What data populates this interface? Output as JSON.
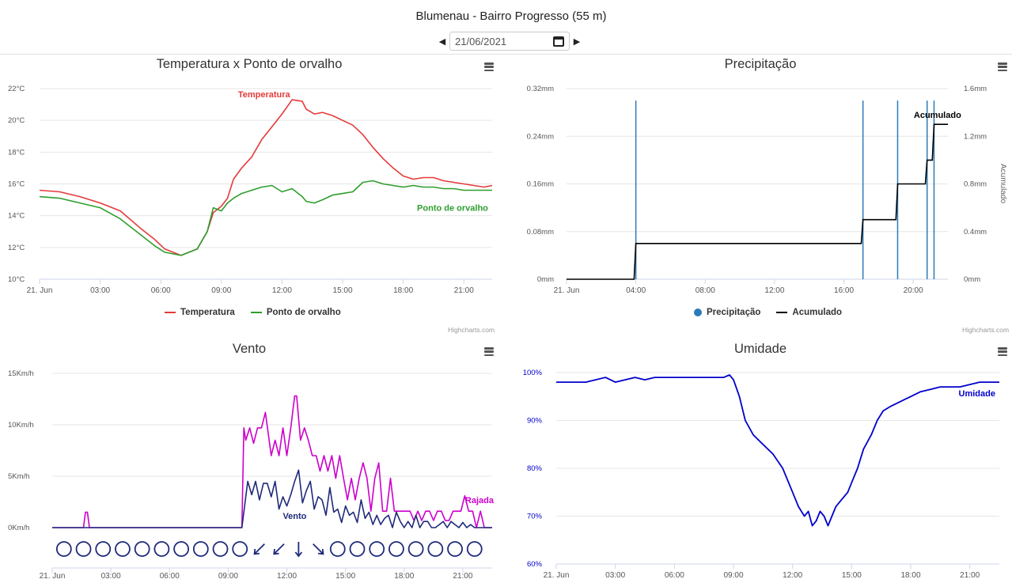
{
  "station": {
    "title": "Blumenau - Bairro Progresso (55 m)",
    "date": "21/06/2021"
  },
  "icons": {
    "prev": "caret-left-icon",
    "next": "caret-right-icon",
    "calendar": "calendar-icon",
    "menu": "hamburger-menu-icon"
  },
  "credits": "Highcharts.com",
  "x_ticks": [
    "21. Jun",
    "03:00",
    "06:00",
    "09:00",
    "12:00",
    "15:00",
    "18:00",
    "21:00"
  ],
  "precip_x_ticks": [
    "21. Jun",
    "04:00",
    "08:00",
    "12:00",
    "16:00",
    "20:00"
  ],
  "colors": {
    "temperature": "#e53a3a",
    "dewpoint": "#2e9e2e",
    "precip": "#2b7bba",
    "accum": "#000000",
    "gust": "#cc00cc",
    "wind": "#1f2a7a",
    "humidity": "#0000cc"
  },
  "chart_data": [
    {
      "id": "temp",
      "type": "line",
      "title": "Temperatura x Ponto de orvalho",
      "x_range_hours": [
        0,
        22.4
      ],
      "ylim": [
        10,
        22
      ],
      "y_ticks": [
        "10°C",
        "12°C",
        "14°C",
        "16°C",
        "18°C",
        "20°C",
        "22°C"
      ],
      "series": [
        {
          "name": "Temperatura",
          "x": [
            0,
            1,
            2,
            3,
            4,
            5,
            5.7,
            6.2,
            7,
            7.8,
            8.3,
            8.6,
            9,
            9.3,
            9.6,
            10,
            10.5,
            11,
            11.5,
            12,
            12.5,
            13,
            13.2,
            13.6,
            14,
            14.5,
            15,
            15.5,
            16,
            16.5,
            17,
            17.5,
            18,
            18.5,
            19,
            19.5,
            20,
            20.5,
            21,
            21.5,
            22,
            22.4
          ],
          "y": [
            15.6,
            15.5,
            15.2,
            14.8,
            14.3,
            13.2,
            12.5,
            11.9,
            11.5,
            11.9,
            13.0,
            14.2,
            14.6,
            15.1,
            16.3,
            17.0,
            17.7,
            18.8,
            19.6,
            20.4,
            21.3,
            21.2,
            20.7,
            20.4,
            20.5,
            20.3,
            20.0,
            19.7,
            19.1,
            18.3,
            17.6,
            17.0,
            16.5,
            16.3,
            16.4,
            16.4,
            16.2,
            16.1,
            16.0,
            15.9,
            15.8,
            15.9
          ]
        },
        {
          "name": "Ponto de orvalho",
          "x": [
            0,
            1,
            2,
            3,
            4,
            5,
            5.7,
            6.2,
            7,
            7.8,
            8.3,
            8.6,
            9,
            9.3,
            9.6,
            10,
            10.5,
            11,
            11.5,
            12,
            12.5,
            13,
            13.2,
            13.6,
            14,
            14.5,
            15,
            15.5,
            16,
            16.5,
            17,
            17.5,
            18,
            18.5,
            19,
            19.5,
            20,
            20.5,
            21,
            21.5,
            22,
            22.4
          ],
          "y": [
            15.2,
            15.1,
            14.8,
            14.5,
            13.8,
            12.8,
            12.1,
            11.7,
            11.5,
            11.9,
            13.0,
            14.5,
            14.3,
            14.8,
            15.1,
            15.4,
            15.6,
            15.8,
            15.9,
            15.5,
            15.7,
            15.2,
            14.9,
            14.8,
            15.0,
            15.3,
            15.4,
            15.5,
            16.1,
            16.2,
            16.0,
            15.9,
            15.8,
            15.9,
            15.8,
            15.8,
            15.7,
            15.7,
            15.6,
            15.6,
            15.6,
            15.6
          ]
        }
      ]
    },
    {
      "id": "precip",
      "type": "bar+line",
      "title": "Precipitação",
      "x_range_hours": [
        0,
        22
      ],
      "ylim": [
        0,
        0.32
      ],
      "y2lim": [
        0,
        1.6
      ],
      "y_ticks": [
        "0mm",
        "0.08mm",
        "0.16mm",
        "0.24mm",
        "0.32mm"
      ],
      "y2_ticks": [
        "0mm",
        "0.4mm",
        "0.8mm",
        "1.2mm",
        "1.6mm"
      ],
      "y2label": "Acumulado",
      "series": [
        {
          "name": "Precipitação",
          "x": [
            4.0,
            17.1,
            19.1,
            20.8,
            21.2
          ],
          "y": [
            0.3,
            0.3,
            0.3,
            0.3,
            0.3
          ]
        },
        {
          "name": "Acumulado",
          "x": [
            0,
            3.9,
            4.0,
            17.0,
            17.1,
            19.0,
            19.1,
            20.7,
            20.8,
            21.1,
            21.2,
            21.5,
            22
          ],
          "y": [
            0,
            0,
            0.3,
            0.3,
            0.5,
            0.5,
            0.8,
            0.8,
            1.0,
            1.0,
            1.3,
            1.3,
            1.3
          ]
        }
      ]
    },
    {
      "id": "wind",
      "type": "line",
      "title": "Vento",
      "x_range_hours": [
        0,
        22.5
      ],
      "ylim": [
        0,
        15
      ],
      "y_ticks": [
        "0Km/h",
        "5Km/h",
        "10Km/h",
        "15Km/h"
      ],
      "series": [
        {
          "name": "Rajada",
          "x": [
            0,
            1.6,
            1.7,
            1.8,
            1.9,
            9.7,
            9.8,
            9.9,
            10.1,
            10.3,
            10.5,
            10.7,
            10.9,
            11.2,
            11.4,
            11.6,
            11.8,
            12.0,
            12.2,
            12.4,
            12.5,
            12.7,
            12.9,
            13.1,
            13.3,
            13.5,
            13.7,
            13.9,
            14.1,
            14.3,
            14.5,
            14.7,
            14.9,
            15.1,
            15.3,
            15.5,
            15.7,
            15.9,
            16.1,
            16.3,
            16.5,
            16.7,
            16.9,
            17.1,
            17.3,
            17.5,
            17.7,
            17.9,
            18.1,
            18.3,
            18.5,
            18.7,
            18.9,
            19.1,
            19.3,
            19.5,
            19.7,
            19.9,
            20.1,
            20.3,
            20.5,
            20.7,
            20.9,
            21.1,
            21.3,
            21.5,
            21.7,
            21.9,
            22.1,
            22.5
          ],
          "y": [
            0,
            0,
            1.5,
            1.5,
            0,
            0,
            9.7,
            8.5,
            9.7,
            8.2,
            9.7,
            9.7,
            11.2,
            7.0,
            8.5,
            7.0,
            9.7,
            7.0,
            9.7,
            12.8,
            12.8,
            8.5,
            9.7,
            8.5,
            7.0,
            7.0,
            5.5,
            7.0,
            5.5,
            7.0,
            4.8,
            7.0,
            4.8,
            2.7,
            4.8,
            2.7,
            4.8,
            6.3,
            4.8,
            1.6,
            4.8,
            6.3,
            1.6,
            1.6,
            4.8,
            1.6,
            1.6,
            1.6,
            1.6,
            1.6,
            0.7,
            1.6,
            0.7,
            1.6,
            1.6,
            0.7,
            1.6,
            1.6,
            0.7,
            0.7,
            1.6,
            1.6,
            1.6,
            3.1,
            1.6,
            1.6,
            0,
            1.6,
            0,
            0
          ]
        },
        {
          "name": "Vento",
          "x": [
            0,
            9.7,
            9.9,
            10.0,
            10.2,
            10.4,
            10.6,
            10.8,
            11.0,
            11.2,
            11.4,
            11.6,
            11.8,
            12.0,
            12.2,
            12.4,
            12.6,
            12.8,
            13.0,
            13.2,
            13.4,
            13.6,
            13.8,
            14.0,
            14.2,
            14.4,
            14.6,
            14.8,
            15.0,
            15.2,
            15.4,
            15.6,
            15.8,
            16.0,
            16.2,
            16.4,
            16.6,
            16.8,
            17.0,
            17.2,
            17.4,
            17.6,
            17.8,
            18.0,
            18.2,
            18.4,
            18.6,
            18.8,
            19.0,
            19.2,
            19.4,
            19.6,
            19.8,
            20.0,
            20.2,
            20.4,
            20.6,
            20.8,
            21.0,
            21.2,
            21.4,
            21.6,
            21.8,
            22.0,
            22.5
          ],
          "y": [
            0,
            0,
            3.0,
            4.5,
            3.2,
            4.5,
            2.7,
            4.3,
            4.3,
            3.0,
            4.5,
            1.8,
            3.0,
            2.1,
            3.2,
            4.5,
            5.6,
            2.4,
            3.6,
            4.5,
            1.8,
            3.0,
            2.7,
            1.2,
            3.9,
            1.5,
            1.8,
            0.5,
            2.1,
            1.2,
            1.5,
            0.5,
            2.7,
            0.9,
            1.5,
            0.3,
            1.2,
            0.3,
            0.9,
            1.2,
            0.0,
            1.5,
            0.6,
            0.0,
            0.6,
            0.0,
            1.2,
            0.0,
            0.6,
            0.6,
            0.0,
            0.0,
            0.3,
            0.6,
            0.0,
            0.6,
            0.3,
            0.0,
            0.5,
            0.0,
            0.3,
            0.0,
            0.0,
            0.0,
            0.0
          ]
        }
      ],
      "direction_symbols": [
        {
          "h": 0.6,
          "type": "calm"
        },
        {
          "h": 1.6,
          "type": "calm"
        },
        {
          "h": 2.6,
          "type": "calm"
        },
        {
          "h": 3.6,
          "type": "calm"
        },
        {
          "h": 4.6,
          "type": "calm"
        },
        {
          "h": 5.6,
          "type": "calm"
        },
        {
          "h": 6.6,
          "type": "calm"
        },
        {
          "h": 7.6,
          "type": "calm"
        },
        {
          "h": 8.6,
          "type": "calm"
        },
        {
          "h": 9.6,
          "type": "calm"
        },
        {
          "h": 10.6,
          "type": "arrow",
          "deg": 225
        },
        {
          "h": 11.6,
          "type": "arrow",
          "deg": 225
        },
        {
          "h": 12.6,
          "type": "arrow",
          "deg": 180
        },
        {
          "h": 13.6,
          "type": "arrow",
          "deg": 135
        },
        {
          "h": 14.6,
          "type": "calm"
        },
        {
          "h": 15.6,
          "type": "calm"
        },
        {
          "h": 16.6,
          "type": "calm"
        },
        {
          "h": 17.6,
          "type": "calm"
        },
        {
          "h": 18.6,
          "type": "calm"
        },
        {
          "h": 19.6,
          "type": "calm"
        },
        {
          "h": 20.6,
          "type": "calm"
        },
        {
          "h": 21.6,
          "type": "calm"
        }
      ]
    },
    {
      "id": "humidity",
      "type": "line",
      "title": "Umidade",
      "x_range_hours": [
        0,
        22.5
      ],
      "ylim": [
        60,
        100
      ],
      "y_ticks": [
        "60%",
        "70%",
        "80%",
        "90%",
        "100%"
      ],
      "series": [
        {
          "name": "Umidade",
          "x": [
            0,
            1,
            1.5,
            2,
            2.5,
            3,
            3.5,
            4,
            4.5,
            5,
            6,
            7,
            8,
            8.5,
            8.8,
            9,
            9.3,
            9.6,
            10,
            10.5,
            11,
            11.5,
            12,
            12.3,
            12.6,
            12.8,
            13,
            13.2,
            13.4,
            13.6,
            13.8,
            14,
            14.2,
            14.4,
            14.6,
            14.8,
            15,
            15.3,
            15.6,
            16,
            16.3,
            16.6,
            17,
            17.5,
            18,
            18.5,
            19,
            19.5,
            20,
            20.5,
            21,
            21.5,
            22,
            22.5
          ],
          "y": [
            98,
            98,
            98,
            98.5,
            99,
            98,
            98.5,
            99,
            98.5,
            99,
            99,
            99,
            99,
            99,
            99.5,
            98.5,
            95,
            90,
            87,
            85,
            83,
            80,
            75,
            72,
            70,
            71,
            68,
            69,
            71,
            70,
            68,
            70,
            72,
            73,
            74,
            75,
            77,
            80,
            84,
            87,
            90,
            92,
            93,
            94,
            95,
            96,
            96.5,
            97,
            97,
            97,
            97.5,
            98,
            98,
            98
          ]
        }
      ]
    }
  ]
}
